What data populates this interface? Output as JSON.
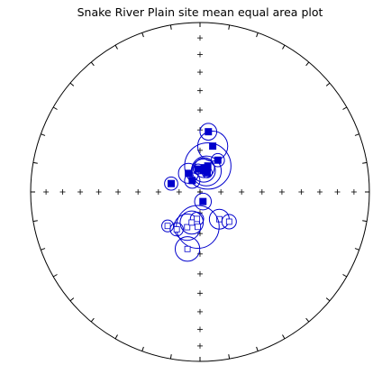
{
  "chart_data": {
    "type": "scatter",
    "projection": "equal-area stereonet",
    "title": "Snake River Plain site mean equal area plot",
    "grid": "cross ticks along N-S and E-W axes; tick marks every 10 degrees on primitive",
    "marker_color": "#0000cc",
    "lower_hemisphere_sites": [
      {
        "dec": 7.9,
        "inc": 60.6,
        "a95": 2.6
      },
      {
        "dec": 15.5,
        "inc": 67.1,
        "a95": 4.6
      },
      {
        "dec": 29.3,
        "inc": 72.5,
        "a95": 2.0
      },
      {
        "dec": 16.7,
        "inc": 77.0,
        "a95": 7.0
      },
      {
        "dec": 10.4,
        "inc": 78.2,
        "a95": 3.0
      },
      {
        "dec": 20.7,
        "inc": 80.2,
        "a95": 1.5
      },
      {
        "dec": 355.4,
        "inc": 79.0,
        "a95": 1.5
      },
      {
        "dec": 9.9,
        "inc": 79.6,
        "a95": 3.5
      },
      {
        "dec": 328.1,
        "inc": 79.5,
        "a95": 3.0
      },
      {
        "dec": 286.2,
        "inc": 75.6,
        "a95": 2.0
      },
      {
        "dec": 325.8,
        "inc": 83.4,
        "a95": 2.3
      },
      {
        "dec": 16.7,
        "inc": 79.5,
        "a95": 4.5
      },
      {
        "dec": 162.9,
        "inc": 85.2,
        "a95": 2.5
      }
    ],
    "upper_hemisphere_sites": [
      {
        "dec": 200.0,
        "inc": -72.0,
        "a95": 4.0
      },
      {
        "dec": 186.4,
        "inc": -77.0,
        "a95": 2.0
      },
      {
        "dec": 144.7,
        "inc": -74.0,
        "a95": 3.0
      },
      {
        "dec": 135.6,
        "inc": -70.0,
        "a95": 2.2
      },
      {
        "dec": 195.2,
        "inc": -74.8,
        "a95": 3.5
      },
      {
        "dec": 183.7,
        "inc": -73.2,
        "a95": 6.5
      },
      {
        "dec": 223.6,
        "inc": -67.4,
        "a95": 1.8
      },
      {
        "dec": 211.9,
        "inc": -68.8,
        "a95": 2.0
      },
      {
        "dec": 192.4,
        "inc": -61.8,
        "a95": 3.8
      }
    ]
  }
}
